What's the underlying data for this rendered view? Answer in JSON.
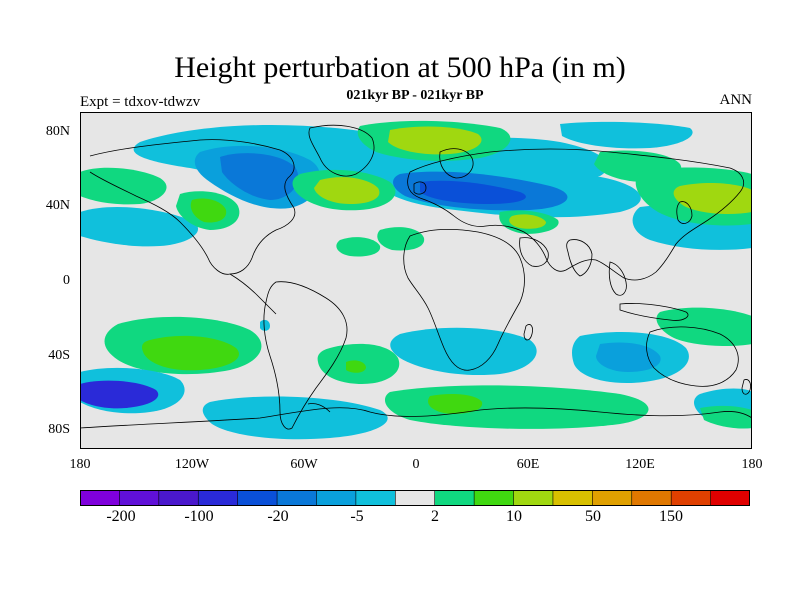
{
  "title": "Height perturbation at 500 hPa (in m)",
  "subtitle": "021kyr BP - 021kyr BP",
  "left_label": "Expt = tdxov-tdwzv",
  "right_label": "ANN",
  "lat_ticks": [
    "80N",
    "40N",
    "0",
    "40S",
    "80S"
  ],
  "lon_ticks": [
    "180",
    "120W",
    "60W",
    "0",
    "60E",
    "120E",
    "180"
  ],
  "colorbar": {
    "colors": [
      "#7f00dc",
      "#6010d8",
      "#4a18cc",
      "#2a2ad8",
      "#0a50d8",
      "#0a78d8",
      "#0aa0dc",
      "#10c0dc",
      "#e6e6e6",
      "#10d880",
      "#40d810",
      "#a0d810",
      "#d8c000",
      "#e0a000",
      "#e07800",
      "#e04000",
      "#e00000"
    ],
    "tick_labels": [
      "-200",
      "-100",
      "-20",
      "-5",
      "2",
      "10",
      "50",
      "150"
    ]
  },
  "palette": {
    "background": "#e6e6e6",
    "land_outline": "#000000"
  }
}
